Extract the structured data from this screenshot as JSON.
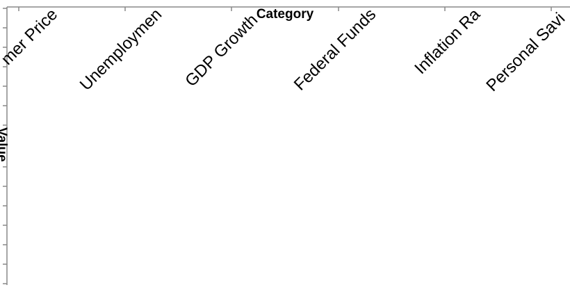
{
  "chart_data": {
    "type": "bar",
    "x_label": "Category",
    "y_label": "Value",
    "categories": [
      "mer Price",
      "Unemploymen",
      "GDP Growth",
      "Federal Funds",
      "Inflation Ra",
      "Personal Savi"
    ]
  }
}
